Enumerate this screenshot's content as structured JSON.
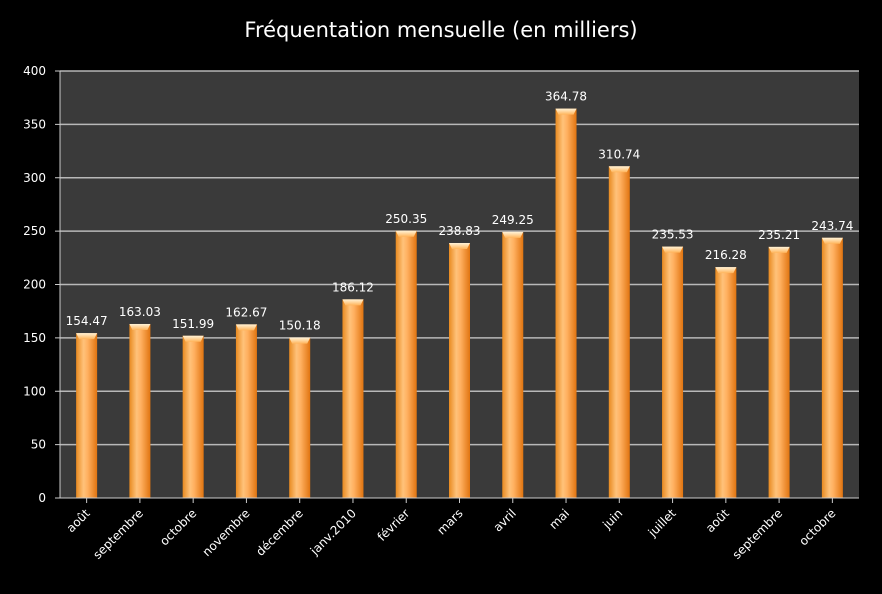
{
  "chart_data": {
    "type": "bar",
    "title": "Fréquentation mensuelle (en milliers)",
    "categories": [
      "août",
      "septembre",
      "octobre",
      "novembre",
      "décembre",
      "janv.2010",
      "février",
      "mars",
      "avril",
      "mai",
      "juin",
      "juillet",
      "août",
      "septembre",
      "octobre"
    ],
    "values": [
      154.47,
      163.03,
      151.99,
      162.67,
      150.18,
      186.12,
      250.35,
      238.83,
      249.25,
      364.78,
      310.74,
      235.53,
      216.28,
      235.21,
      243.74
    ],
    "value_labels": [
      "154.47",
      "163.03",
      "151.99",
      "162.67",
      "150.18",
      "186.12",
      "250.35",
      "238.83",
      "249.25",
      "364.78",
      "310.74",
      "235.53",
      "216.28",
      "235.21",
      "243.74"
    ],
    "yticks": [
      "0",
      "50",
      "100",
      "150",
      "200",
      "250",
      "300",
      "350",
      "400"
    ],
    "ylim": [
      0,
      400
    ],
    "xlabel": "",
    "ylabel": "",
    "grid": true,
    "legend": "none",
    "colors": {
      "background": "#000000",
      "plot_area": "#3a3a3a",
      "grid": "#b8b8b8",
      "bar_light": "#ffd8a0",
      "bar_mid": "#ffb060",
      "bar_dark": "#e87a10",
      "text": "#ffffff"
    }
  }
}
